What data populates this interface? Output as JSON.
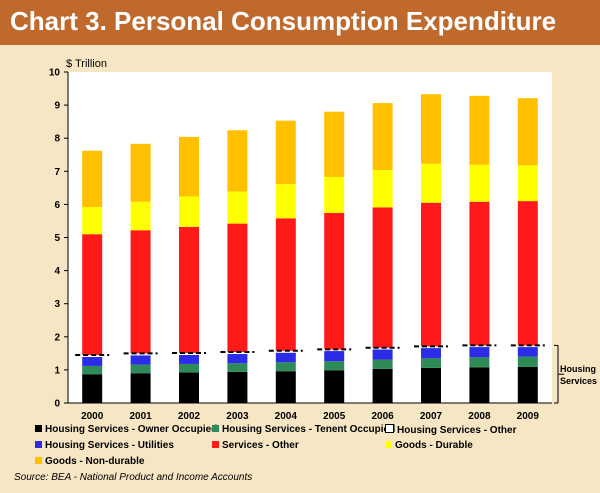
{
  "title": "Chart 3. Personal Consumption Expenditure",
  "source": "Source: BEA - National Product and Income Accounts",
  "housing_bracket_label": [
    "Housing",
    "Services"
  ],
  "colors": {
    "owner_occupied": "#000000",
    "tenent_occupied": "#2e8b57",
    "utilities": "#2b2be8",
    "housing_other": "#ffffff",
    "services_other": "#ff1a1a",
    "goods_durable": "#ffff00",
    "goods_nondurable": "#ffc000",
    "housing_marker": "#000000"
  },
  "chart_data": {
    "type": "bar",
    "stacked": true,
    "ylabel": "$ Trillion",
    "ylim": [
      0,
      10
    ],
    "yticks": [
      "0",
      "1",
      "2",
      "3",
      "4",
      "5",
      "6",
      "7",
      "8",
      "9",
      "10"
    ],
    "categories": [
      "2000",
      "2001",
      "2002",
      "2003",
      "2004",
      "2005",
      "2006",
      "2007",
      "2008",
      "2009"
    ],
    "series": [
      {
        "key": "owner_occupied",
        "name": "Housing Services - Owner Occupied",
        "values": [
          0.87,
          0.9,
          0.92,
          0.94,
          0.96,
          0.99,
          1.03,
          1.06,
          1.08,
          1.09
        ]
      },
      {
        "key": "tenent_occupied",
        "name": "Housing Services - Tenent Occupied",
        "values": [
          0.25,
          0.26,
          0.26,
          0.26,
          0.27,
          0.27,
          0.28,
          0.29,
          0.3,
          0.31
        ]
      },
      {
        "key": "utilities",
        "name": "Housing Services - Utilities",
        "values": [
          0.27,
          0.28,
          0.27,
          0.28,
          0.29,
          0.31,
          0.31,
          0.31,
          0.31,
          0.29
        ]
      },
      {
        "key": "housing_other",
        "name": "Housing Services - Other",
        "values": [
          0.06,
          0.06,
          0.06,
          0.06,
          0.06,
          0.05,
          0.05,
          0.05,
          0.05,
          0.05
        ]
      },
      {
        "key": "services_other",
        "name": "Services - Other",
        "values": [
          3.65,
          3.72,
          3.81,
          3.88,
          4.0,
          4.12,
          4.24,
          4.34,
          4.34,
          4.36
        ]
      },
      {
        "key": "goods_durable",
        "name": "Goods - Durable",
        "values": [
          0.82,
          0.86,
          0.92,
          0.97,
          1.03,
          1.09,
          1.13,
          1.18,
          1.12,
          1.08
        ]
      },
      {
        "key": "goods_nondurable",
        "name": "Goods - Non-durable",
        "values": [
          1.7,
          1.75,
          1.8,
          1.85,
          1.92,
          1.97,
          2.02,
          2.1,
          2.08,
          2.03
        ]
      }
    ],
    "legend": [
      {
        "key": "owner_occupied",
        "label": "Housing Services - Owner Occupied"
      },
      {
        "key": "tenent_occupied",
        "label": "Housing Services - Tenent Occupied"
      },
      {
        "key": "housing_other",
        "label": "Housing Services - Other"
      },
      {
        "key": "utilities",
        "label": "Housing Services - Utilities"
      },
      {
        "key": "services_other",
        "label": "Services - Other"
      },
      {
        "key": "goods_durable",
        "label": "Goods - Durable"
      },
      {
        "key": "goods_nondurable",
        "label": "Goods - Non-durable"
      }
    ]
  }
}
